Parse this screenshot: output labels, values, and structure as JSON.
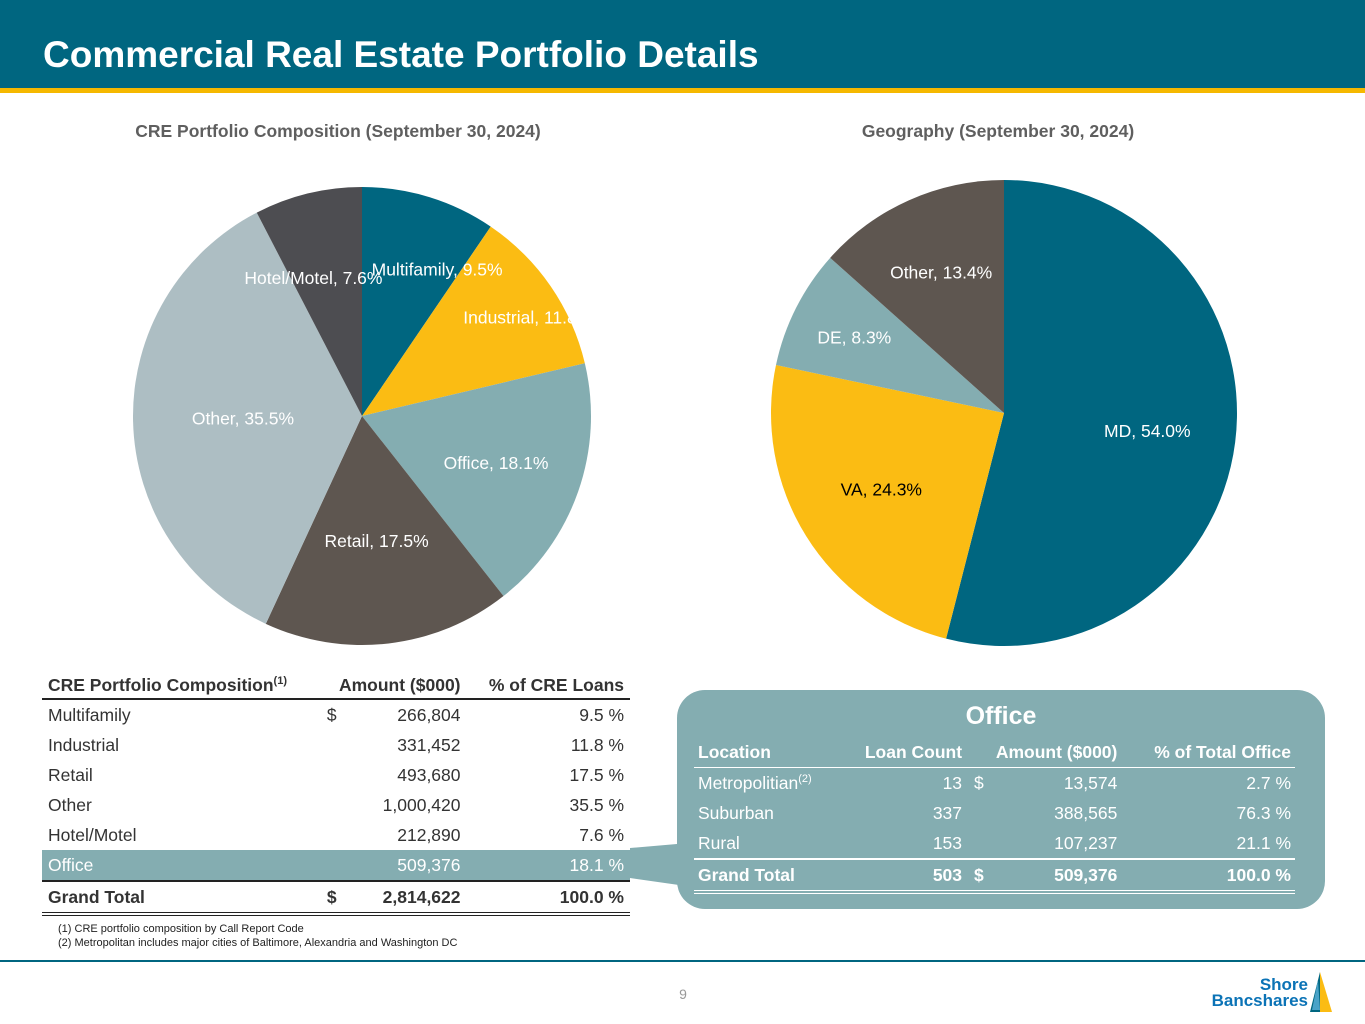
{
  "page": {
    "title": "Commercial Real Estate Portfolio Details",
    "page_number": "9"
  },
  "chart_data": [
    {
      "type": "pie",
      "title": "CRE Portfolio Composition (September 30, 2024)",
      "categories": [
        "Multifamily",
        "Industrial",
        "Office",
        "Retail",
        "Other",
        "Hotel/Motel"
      ],
      "values": [
        9.5,
        11.8,
        18.1,
        17.5,
        35.5,
        7.6
      ],
      "labels": [
        "Multifamily, 9.5%",
        "Industrial, 11.8%",
        "Office, 18.1%",
        "Retail, 17.5%",
        "Other, 35.5%",
        "Hotel/Motel, 7.6%"
      ],
      "colors": [
        "#006680",
        "#fbbc13",
        "#84adb1",
        "#5e5650",
        "#adbec3",
        "#4d4d51"
      ]
    },
    {
      "type": "pie",
      "title": "Geography (September 30, 2024)",
      "categories": [
        "MD",
        "VA",
        "DE",
        "Other"
      ],
      "values": [
        54.0,
        24.3,
        8.3,
        13.4
      ],
      "labels": [
        "MD, 54.0%",
        "VA, 24.3%",
        "DE, 8.3%",
        "Other, 13.4%"
      ],
      "colors": [
        "#006680",
        "#fbbc13",
        "#84adb1",
        "#5e5650"
      ]
    }
  ],
  "cre_table": {
    "headers": [
      "CRE Portfolio Composition",
      "(1)",
      "Amount ($000)",
      "% of CRE Loans"
    ],
    "rows": [
      {
        "name": "Multifamily",
        "cur": "$",
        "amount": "266,804",
        "pct": "9.5 %"
      },
      {
        "name": "Industrial",
        "cur": "",
        "amount": "331,452",
        "pct": "11.8 %"
      },
      {
        "name": "Retail",
        "cur": "",
        "amount": "493,680",
        "pct": "17.5 %"
      },
      {
        "name": "Other",
        "cur": "",
        "amount": "1,000,420",
        "pct": "35.5 %"
      },
      {
        "name": "Hotel/Motel",
        "cur": "",
        "amount": "212,890",
        "pct": "7.6 %"
      },
      {
        "name": "Office",
        "cur": "",
        "amount": "509,376",
        "pct": "18.1 %"
      }
    ],
    "total": {
      "name": "Grand Total",
      "cur": "$",
      "amount": "2,814,622",
      "pct": "100.0 %"
    }
  },
  "office_table": {
    "title": "Office",
    "headers": [
      "Location",
      "Loan Count",
      "Amount ($000)",
      "% of Total Office"
    ],
    "rows": [
      {
        "name": "Metropolitian",
        "sup": "(2)",
        "count": "13",
        "cur": "$",
        "amount": "13,574",
        "pct": "2.7 %"
      },
      {
        "name": "Suburban",
        "sup": "",
        "count": "337",
        "cur": "",
        "amount": "388,565",
        "pct": "76.3 %"
      },
      {
        "name": "Rural",
        "sup": "",
        "count": "153",
        "cur": "",
        "amount": "107,237",
        "pct": "21.1 %"
      }
    ],
    "total": {
      "name": "Grand Total",
      "count": "503",
      "cur": "$",
      "amount": "509,376",
      "pct": "100.0 %"
    }
  },
  "footnotes": [
    "(1) CRE portfolio composition by Call Report Code",
    "(2) Metropolitan includes major cities of Baltimore, Alexandria and Washington DC"
  ],
  "logo": {
    "line1": "Shore",
    "line2": "Bancshares"
  },
  "colors": {
    "brand": "#006680",
    "accent": "#f5b800",
    "highlight": "#84adb1"
  }
}
